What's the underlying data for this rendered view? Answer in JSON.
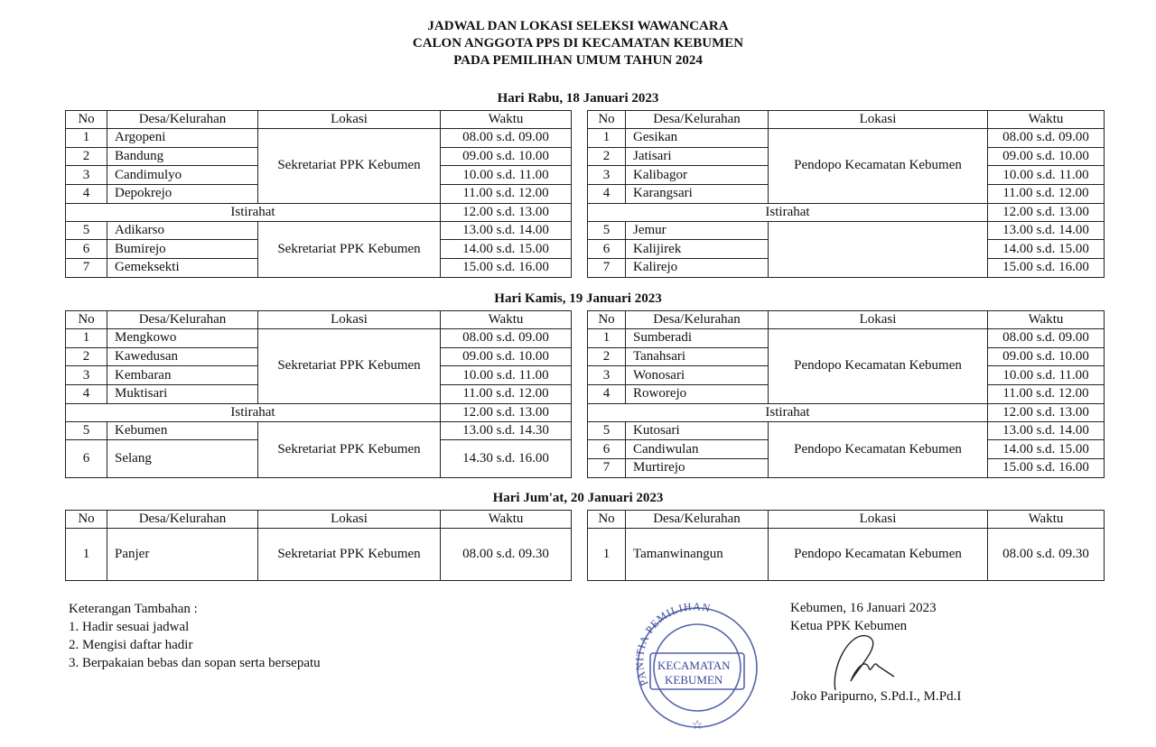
{
  "title": [
    "JADWAL DAN LOKASI SELEKSI WAWANCARA",
    "CALON ANGGOTA PPS DI KECAMATAN KEBUMEN",
    "PADA PEMILIHAN UMUM TAHUN 2024"
  ],
  "headers": {
    "no": "No",
    "desa": "Desa/Kelurahan",
    "lokasi": "Lokasi",
    "waktu": "Waktu"
  },
  "days": [
    {
      "label": "Hari Rabu, 18 Januari 2023",
      "left": [
        {
          "type": "group",
          "lokasi": "Sekretariat PPK Kebumen",
          "rows": [
            {
              "no": "1",
              "desa": "Argopeni",
              "waktu": "08.00 s.d. 09.00"
            },
            {
              "no": "2",
              "desa": "Bandung",
              "waktu": "09.00 s.d. 10.00"
            },
            {
              "no": "3",
              "desa": "Candimulyo",
              "waktu": "10.00 s.d. 11.00"
            },
            {
              "no": "4",
              "desa": "Depokrejo",
              "waktu": "11.00 s.d. 12.00"
            }
          ]
        },
        {
          "type": "break",
          "label": "Istirahat",
          "waktu": "12.00 s.d. 13.00"
        },
        {
          "type": "group",
          "lokasi": "Sekretariat PPK Kebumen",
          "rows": [
            {
              "no": "5",
              "desa": "Adikarso",
              "waktu": "13.00 s.d. 14.00"
            },
            {
              "no": "6",
              "desa": "Bumirejo",
              "waktu": "14.00 s.d. 15.00"
            },
            {
              "no": "7",
              "desa": "Gemeksekti",
              "waktu": "15.00 s.d. 16.00"
            }
          ]
        }
      ],
      "right": [
        {
          "type": "group",
          "lokasi": "Pendopo Kecamatan Kebumen",
          "rows": [
            {
              "no": "1",
              "desa": "Gesikan",
              "waktu": "08.00 s.d. 09.00"
            },
            {
              "no": "2",
              "desa": "Jatisari",
              "waktu": "09.00 s.d. 10.00"
            },
            {
              "no": "3",
              "desa": "Kalibagor",
              "waktu": "10.00 s.d. 11.00"
            },
            {
              "no": "4",
              "desa": "Karangsari",
              "waktu": "11.00 s.d. 12.00"
            }
          ]
        },
        {
          "type": "break",
          "label": "Istirahat",
          "waktu": "12.00 s.d. 13.00"
        },
        {
          "type": "group",
          "lokasi": "",
          "rows": [
            {
              "no": "5",
              "desa": "Jemur",
              "waktu": "13.00 s.d. 14.00"
            },
            {
              "no": "6",
              "desa": "Kalijirek",
              "waktu": "14.00 s.d. 15.00"
            },
            {
              "no": "7",
              "desa": "Kalirejo",
              "waktu": "15.00 s.d. 16.00"
            }
          ]
        }
      ]
    },
    {
      "label": "Hari Kamis, 19 Januari 2023",
      "left": [
        {
          "type": "group",
          "lokasi": "Sekretariat PPK Kebumen",
          "rows": [
            {
              "no": "1",
              "desa": "Mengkowo",
              "waktu": "08.00 s.d. 09.00"
            },
            {
              "no": "2",
              "desa": "Kawedusan",
              "waktu": "09.00 s.d. 10.00"
            },
            {
              "no": "3",
              "desa": "Kembaran",
              "waktu": "10.00 s.d. 11.00"
            },
            {
              "no": "4",
              "desa": "Muktisari",
              "waktu": "11.00 s.d. 12.00"
            }
          ]
        },
        {
          "type": "break",
          "label": "Istirahat",
          "waktu": "12.00 s.d. 13.00"
        },
        {
          "type": "group",
          "lokasi": "Sekretariat PPK Kebumen",
          "rows": [
            {
              "no": "5",
              "desa": "Kebumen",
              "waktu": "13.00 s.d. 14.30"
            },
            {
              "no": "6",
              "desa": "Selang",
              "waktu": "14.30 s.d. 16.00"
            }
          ]
        }
      ],
      "right": [
        {
          "type": "group",
          "lokasi": "Pendopo Kecamatan Kebumen",
          "rows": [
            {
              "no": "1",
              "desa": "Sumberadi",
              "waktu": "08.00 s.d. 09.00"
            },
            {
              "no": "2",
              "desa": "Tanahsari",
              "waktu": "09.00 s.d. 10.00"
            },
            {
              "no": "3",
              "desa": "Wonosari",
              "waktu": "10.00 s.d. 11.00"
            },
            {
              "no": "4",
              "desa": "Roworejo",
              "waktu": "11.00 s.d. 12.00"
            }
          ]
        },
        {
          "type": "break",
          "label": "Istirahat",
          "waktu": "12.00 s.d. 13.00"
        },
        {
          "type": "group",
          "lokasi": "Pendopo Kecamatan Kebumen",
          "rows": [
            {
              "no": "5",
              "desa": "Kutosari",
              "waktu": "13.00 s.d. 14.00"
            },
            {
              "no": "6",
              "desa": "Candiwulan",
              "waktu": "14.00 s.d. 15.00"
            },
            {
              "no": "7",
              "desa": "Murtirejo",
              "waktu": "15.00 s.d. 16.00"
            }
          ]
        }
      ]
    },
    {
      "label": "Hari Jum'at, 20 Januari 2023",
      "left": [
        {
          "type": "group",
          "lokasi": "Sekretariat PPK Kebumen",
          "rows": [
            {
              "no": "1",
              "desa": "Panjer",
              "waktu": "08.00 s.d. 09.30"
            }
          ]
        }
      ],
      "right": [
        {
          "type": "group",
          "lokasi": "Pendopo Kecamatan Kebumen",
          "rows": [
            {
              "no": "1",
              "desa": "Tamanwinangun",
              "waktu": "08.00 s.d. 09.30"
            }
          ]
        }
      ]
    }
  ],
  "notes": {
    "heading": "Keterangan Tambahan :",
    "items": [
      "1. Hadir sesuai jadwal",
      "2. Mengisi daftar hadir",
      "3. Berpakaian bebas dan sopan serta bersepatu"
    ]
  },
  "signature": {
    "place_date": "Kebumen, 16 Januari 2023",
    "role": "Ketua PPK Kebumen",
    "name": "Joko Paripurno, S.Pd.I., M.Pd.I"
  },
  "stamp": {
    "ring_text": "PANITIA PEMILIHAN",
    "center_lines": [
      "KECAMATAN",
      "KEBUMEN"
    ],
    "color": "#3a4a9a"
  }
}
